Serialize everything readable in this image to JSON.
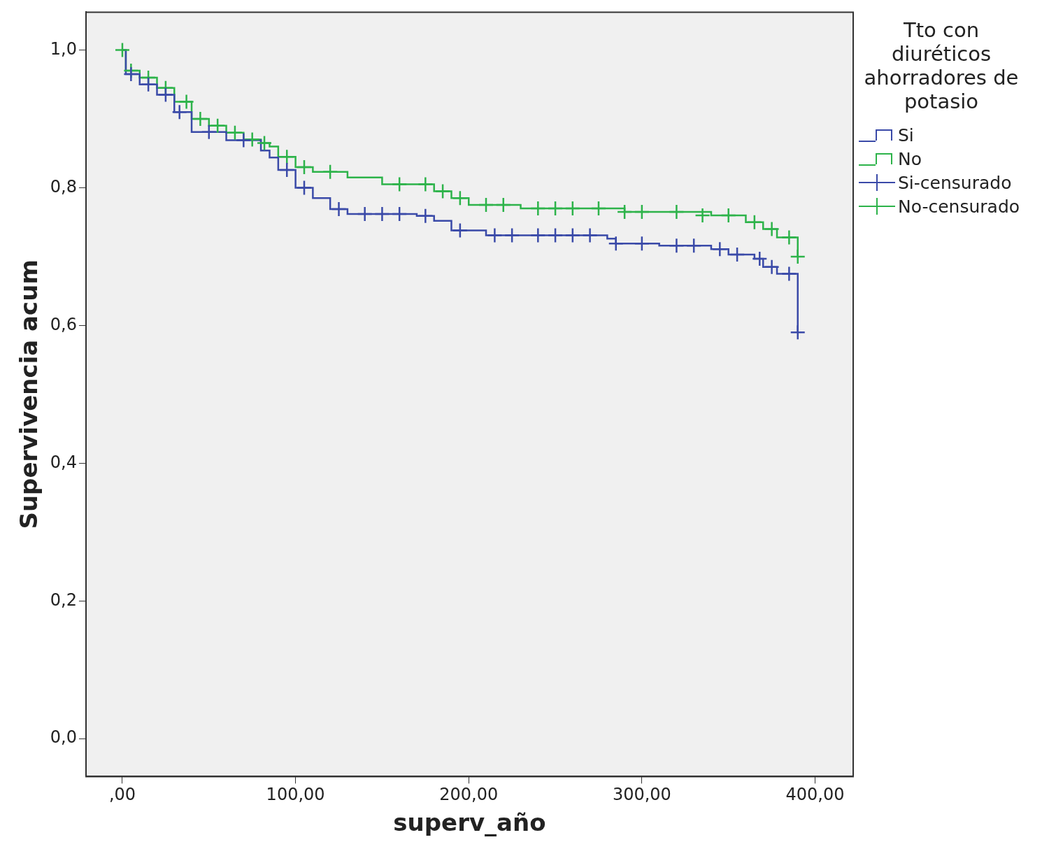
{
  "chart_data": {
    "type": "step",
    "xlabel": "superv_año",
    "ylabel": "Supervivencia acum",
    "legend_title": "Tto con diuréticos ahorradores de potasio",
    "legend": "right",
    "grid": false,
    "xlim": [
      -21,
      422
    ],
    "ylim": [
      -0.055,
      1.055
    ],
    "xticks": [
      {
        "value": 0,
        "label": ",00"
      },
      {
        "value": 100,
        "label": "100,00"
      },
      {
        "value": 200,
        "label": "200,00"
      },
      {
        "value": 300,
        "label": "300,00"
      },
      {
        "value": 400,
        "label": "400,00"
      }
    ],
    "yticks": [
      {
        "value": 0,
        "label": "0,0"
      },
      {
        "value": 0.2,
        "label": "0,2"
      },
      {
        "value": 0.4,
        "label": "0,4"
      },
      {
        "value": 0.6,
        "label": "0,6"
      },
      {
        "value": 0.8,
        "label": "0,8"
      },
      {
        "value": 1,
        "label": "1,0"
      }
    ],
    "series": [
      {
        "name": "Si",
        "color": "#3a4aa8",
        "x": [
          0,
          2,
          10,
          20,
          30,
          40,
          60,
          80,
          85,
          90,
          100,
          110,
          120,
          130,
          170,
          180,
          190,
          210,
          280,
          285,
          310,
          340,
          350,
          365,
          370,
          378,
          390,
          390
        ],
        "values": [
          1,
          0.965,
          0.95,
          0.935,
          0.91,
          0.881,
          0.869,
          0.854,
          0.844,
          0.826,
          0.8,
          0.785,
          0.769,
          0.762,
          0.759,
          0.752,
          0.738,
          0.731,
          0.726,
          0.719,
          0.716,
          0.711,
          0.703,
          0.697,
          0.685,
          0.675,
          0.675,
          0.59
        ]
      },
      {
        "name": "No",
        "color": "#2db34a",
        "x": [
          0,
          2,
          10,
          20,
          30,
          40,
          50,
          60,
          70,
          80,
          85,
          90,
          100,
          110,
          130,
          150,
          180,
          190,
          200,
          230,
          290,
          340,
          360,
          370,
          378,
          390,
          390
        ],
        "values": [
          1,
          0.97,
          0.96,
          0.945,
          0.925,
          0.9,
          0.89,
          0.88,
          0.87,
          0.865,
          0.86,
          0.845,
          0.83,
          0.823,
          0.815,
          0.805,
          0.795,
          0.785,
          0.775,
          0.77,
          0.765,
          0.76,
          0.75,
          0.74,
          0.728,
          0.725,
          0.7
        ]
      },
      {
        "name": "Si-censurado",
        "type": "scatter",
        "marker": "cross",
        "color": "#3a4aa8",
        "x": [
          5,
          15,
          25,
          33,
          50,
          70,
          95,
          105,
          125,
          140,
          150,
          160,
          175,
          195,
          215,
          225,
          240,
          250,
          260,
          270,
          285,
          300,
          320,
          330,
          345,
          355,
          368,
          375,
          385,
          390
        ],
        "values": [
          0.965,
          0.95,
          0.935,
          0.91,
          0.881,
          0.869,
          0.826,
          0.8,
          0.769,
          0.762,
          0.762,
          0.762,
          0.759,
          0.738,
          0.731,
          0.731,
          0.731,
          0.731,
          0.731,
          0.731,
          0.719,
          0.719,
          0.716,
          0.716,
          0.711,
          0.703,
          0.697,
          0.685,
          0.675,
          0.59
        ]
      },
      {
        "name": "No-censurado",
        "type": "scatter",
        "marker": "cross",
        "color": "#2db34a",
        "x": [
          0,
          5,
          15,
          25,
          37,
          45,
          55,
          65,
          75,
          82,
          95,
          105,
          120,
          160,
          175,
          185,
          195,
          210,
          220,
          240,
          250,
          260,
          275,
          290,
          300,
          320,
          335,
          350,
          365,
          375,
          385,
          390
        ],
        "values": [
          1,
          0.97,
          0.96,
          0.945,
          0.925,
          0.9,
          0.89,
          0.88,
          0.87,
          0.865,
          0.845,
          0.83,
          0.823,
          0.805,
          0.805,
          0.795,
          0.785,
          0.775,
          0.775,
          0.77,
          0.77,
          0.77,
          0.77,
          0.765,
          0.765,
          0.765,
          0.76,
          0.76,
          0.75,
          0.74,
          0.728,
          0.7
        ]
      }
    ]
  }
}
